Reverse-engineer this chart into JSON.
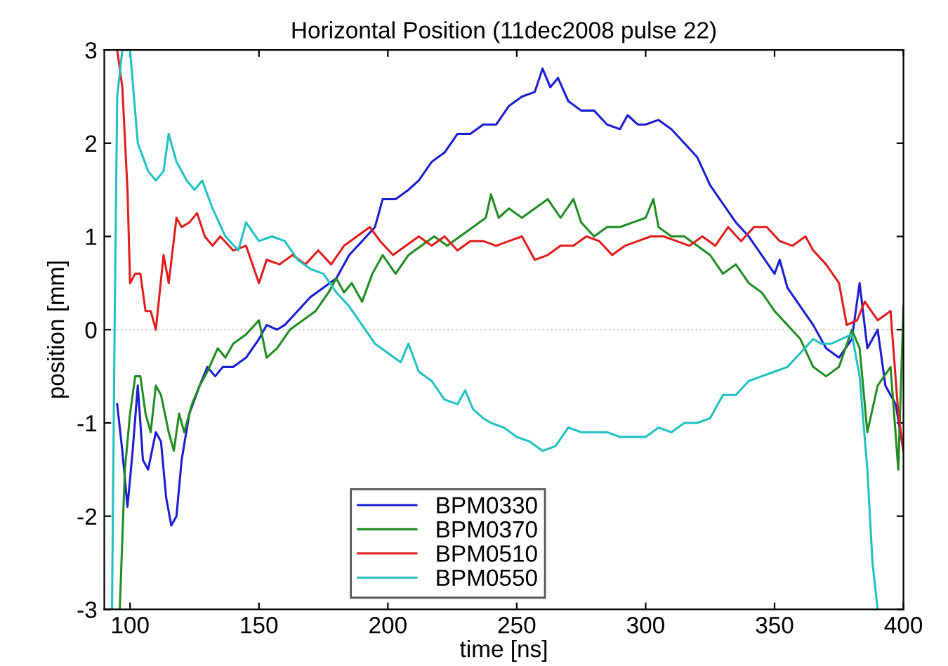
{
  "chart_data": {
    "type": "line",
    "title": "Horizontal Position (11dec2008 pulse 22)",
    "xlabel": "time [ns]",
    "ylabel": "position [mm]",
    "xlim": [
      90,
      400
    ],
    "ylim": [
      -3,
      3
    ],
    "xticks": [
      100,
      150,
      200,
      250,
      300,
      350,
      400
    ],
    "yticks": [
      -3,
      -2,
      -1,
      0,
      1,
      2,
      3
    ],
    "grid": false,
    "legend": "bottom",
    "line_style": "solid",
    "ref_lines": [
      {
        "axis": "y",
        "value": 0,
        "color": "#c8c8c8",
        "line_style": "dotted"
      }
    ],
    "series": [
      {
        "name": "BPM0330",
        "color": "#1c1cd0",
        "x": [
          95,
          97,
          99,
          101,
          103,
          105,
          107,
          110,
          112,
          114,
          116,
          118,
          120,
          123,
          127,
          130,
          133,
          136,
          140,
          145,
          150,
          153,
          157,
          160,
          165,
          170,
          175,
          180,
          185,
          190,
          195,
          198,
          203,
          208,
          212,
          217,
          222,
          227,
          232,
          237,
          242,
          247,
          252,
          257,
          260,
          263,
          266,
          270,
          275,
          280,
          285,
          290,
          293,
          297,
          300,
          305,
          310,
          315,
          320,
          325,
          330,
          335,
          340,
          345,
          350,
          352,
          355,
          360,
          365,
          370,
          375,
          380,
          383,
          386,
          390,
          393,
          397,
          400
        ],
        "values": [
          -0.8,
          -1.3,
          -1.9,
          -1.3,
          -0.6,
          -1.4,
          -1.5,
          -1.1,
          -1.2,
          -1.8,
          -2.1,
          -2.0,
          -1.4,
          -0.9,
          -0.6,
          -0.4,
          -0.5,
          -0.4,
          -0.4,
          -0.3,
          -0.1,
          0.05,
          0.0,
          0.05,
          0.2,
          0.35,
          0.45,
          0.55,
          0.8,
          0.95,
          1.1,
          1.4,
          1.4,
          1.5,
          1.6,
          1.8,
          1.9,
          2.1,
          2.1,
          2.2,
          2.2,
          2.4,
          2.5,
          2.55,
          2.8,
          2.6,
          2.7,
          2.45,
          2.35,
          2.35,
          2.2,
          2.15,
          2.3,
          2.2,
          2.2,
          2.25,
          2.15,
          2.0,
          1.85,
          1.55,
          1.35,
          1.15,
          1.0,
          0.8,
          0.6,
          0.75,
          0.45,
          0.25,
          0.05,
          -0.2,
          -0.3,
          -0.1,
          0.5,
          -0.2,
          0.0,
          -0.6,
          -0.8,
          -1.3
        ]
      },
      {
        "name": "BPM0370",
        "color": "#228b22",
        "x": [
          96,
          98,
          100,
          102,
          104,
          106,
          108,
          110,
          112,
          115,
          117,
          119,
          121,
          124,
          127,
          130,
          134,
          137,
          140,
          145,
          150,
          153,
          157,
          162,
          167,
          172,
          177,
          180,
          183,
          186,
          190,
          194,
          198,
          203,
          208,
          213,
          218,
          223,
          228,
          233,
          238,
          240,
          243,
          247,
          252,
          257,
          262,
          267,
          272,
          275,
          280,
          285,
          290,
          295,
          300,
          303,
          305,
          310,
          315,
          320,
          325,
          330,
          335,
          340,
          345,
          350,
          355,
          360,
          365,
          370,
          375,
          380,
          383,
          386,
          390,
          395,
          398,
          400
        ],
        "values": [
          -3,
          -1.5,
          -0.9,
          -0.5,
          -0.5,
          -0.9,
          -1.1,
          -0.6,
          -0.7,
          -1.1,
          -1.3,
          -0.9,
          -1.1,
          -0.8,
          -0.6,
          -0.45,
          -0.2,
          -0.3,
          -0.15,
          -0.05,
          0.1,
          -0.3,
          -0.2,
          0.0,
          0.1,
          0.2,
          0.4,
          0.55,
          0.4,
          0.5,
          0.3,
          0.6,
          0.8,
          0.6,
          0.8,
          0.9,
          1.0,
          0.9,
          1.0,
          1.1,
          1.2,
          1.45,
          1.2,
          1.3,
          1.2,
          1.3,
          1.4,
          1.2,
          1.4,
          1.15,
          1.0,
          1.1,
          1.1,
          1.15,
          1.2,
          1.4,
          1.1,
          1.0,
          1.0,
          0.9,
          0.8,
          0.6,
          0.7,
          0.5,
          0.4,
          0.2,
          0.05,
          -0.1,
          -0.4,
          -0.5,
          -0.4,
          0.0,
          -0.2,
          -1.1,
          -0.6,
          -0.4,
          -1.5,
          0.25
        ]
      },
      {
        "name": "BPM0510",
        "color": "#e01c1c",
        "x": [
          95,
          97,
          99,
          100,
          102,
          104,
          106,
          108,
          110,
          113,
          115,
          118,
          120,
          123,
          126,
          129,
          132,
          135,
          140,
          145,
          150,
          153,
          158,
          163,
          168,
          173,
          178,
          183,
          188,
          193,
          197,
          202,
          207,
          212,
          217,
          222,
          227,
          232,
          237,
          242,
          247,
          252,
          257,
          262,
          267,
          272,
          277,
          282,
          287,
          292,
          297,
          302,
          307,
          312,
          317,
          322,
          327,
          332,
          337,
          342,
          347,
          352,
          357,
          362,
          365,
          370,
          375,
          378,
          382,
          385,
          390,
          395,
          398,
          400
        ],
        "values": [
          3.0,
          2.6,
          1.5,
          0.5,
          0.6,
          0.6,
          0.2,
          0.2,
          0.0,
          0.8,
          0.5,
          1.2,
          1.1,
          1.15,
          1.25,
          1.0,
          0.9,
          1.0,
          0.85,
          0.9,
          0.5,
          0.75,
          0.7,
          0.8,
          0.7,
          0.85,
          0.7,
          0.9,
          1.0,
          1.1,
          0.95,
          0.8,
          0.9,
          1.0,
          0.9,
          1.0,
          0.85,
          0.95,
          0.95,
          0.9,
          0.95,
          1.0,
          0.75,
          0.8,
          0.9,
          0.9,
          1.0,
          0.95,
          0.8,
          0.9,
          0.95,
          1.0,
          1.0,
          0.95,
          0.9,
          1.0,
          0.9,
          1.1,
          0.95,
          1.1,
          1.1,
          0.95,
          0.9,
          1.0,
          0.85,
          0.7,
          0.5,
          0.05,
          0.1,
          0.3,
          0.1,
          0.2,
          -0.9,
          -1.3
        ]
      },
      {
        "name": "BPM0550",
        "color": "#22c0c0",
        "x": [
          93,
          94,
          95,
          97,
          100,
          103,
          107,
          110,
          113,
          115,
          118,
          122,
          125,
          128,
          132,
          137,
          142,
          145,
          150,
          155,
          160,
          165,
          170,
          175,
          180,
          185,
          190,
          195,
          200,
          205,
          208,
          212,
          217,
          222,
          227,
          230,
          233,
          237,
          240,
          245,
          250,
          255,
          260,
          265,
          270,
          275,
          280,
          285,
          290,
          295,
          300,
          305,
          310,
          315,
          320,
          325,
          330,
          335,
          340,
          345,
          350,
          355,
          360,
          365,
          368,
          372,
          376,
          380,
          383,
          386,
          388,
          390
        ],
        "values": [
          -3,
          0,
          2.5,
          3.0,
          3.0,
          2.0,
          1.7,
          1.6,
          1.7,
          2.1,
          1.8,
          1.6,
          1.5,
          1.6,
          1.3,
          1.0,
          0.85,
          1.15,
          0.95,
          1.0,
          0.95,
          0.75,
          0.65,
          0.6,
          0.4,
          0.25,
          0.05,
          -0.15,
          -0.25,
          -0.35,
          -0.15,
          -0.45,
          -0.55,
          -0.75,
          -0.8,
          -0.65,
          -0.85,
          -0.95,
          -1.0,
          -1.05,
          -1.15,
          -1.2,
          -1.3,
          -1.25,
          -1.05,
          -1.1,
          -1.1,
          -1.1,
          -1.15,
          -1.15,
          -1.15,
          -1.05,
          -1.1,
          -1.0,
          -1.0,
          -0.95,
          -0.7,
          -0.7,
          -0.55,
          -0.5,
          -0.45,
          -0.4,
          -0.25,
          -0.1,
          -0.15,
          -0.15,
          -0.1,
          -0.05,
          -0.5,
          -1.5,
          -2.5,
          -3.0
        ]
      }
    ]
  }
}
